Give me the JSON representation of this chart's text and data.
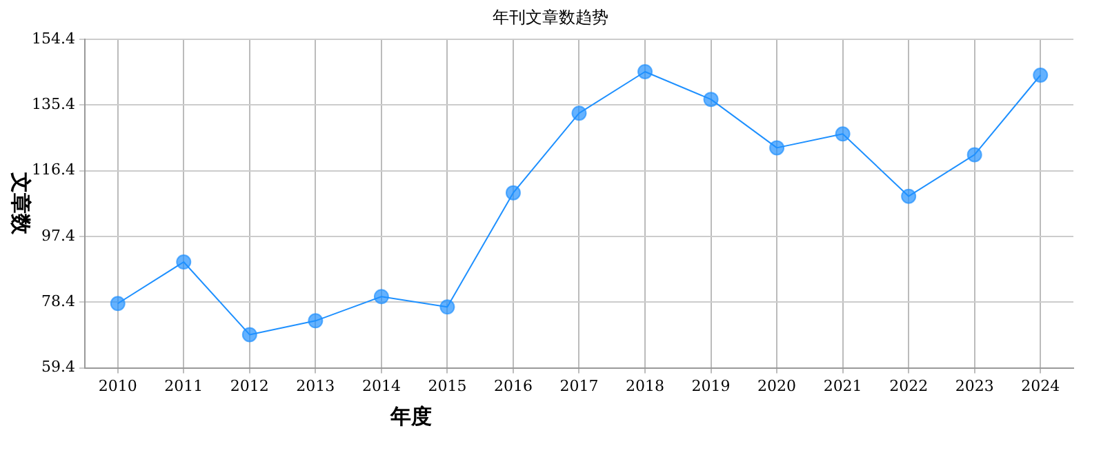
{
  "chart_data": {
    "type": "line",
    "title": "年刊文章数趋势",
    "xlabel": "年度",
    "ylabel": "文章数",
    "categories": [
      "2010",
      "2011",
      "2012",
      "2013",
      "2014",
      "2015",
      "2016",
      "2017",
      "2018",
      "2019",
      "2020",
      "2021",
      "2022",
      "2023",
      "2024"
    ],
    "series": [
      {
        "color": "#1e90ff",
        "values": [
          78,
          90,
          69,
          73,
          80,
          77,
          110,
          133,
          145,
          137,
          123,
          127,
          109,
          121,
          144
        ]
      }
    ],
    "ylim": [
      59.4,
      154.4
    ],
    "yticks": [
      59.4,
      78.4,
      97.4,
      116.4,
      135.4,
      154.4
    ],
    "grid": true,
    "marker": "circle",
    "line_style": "solid",
    "legend": false
  }
}
